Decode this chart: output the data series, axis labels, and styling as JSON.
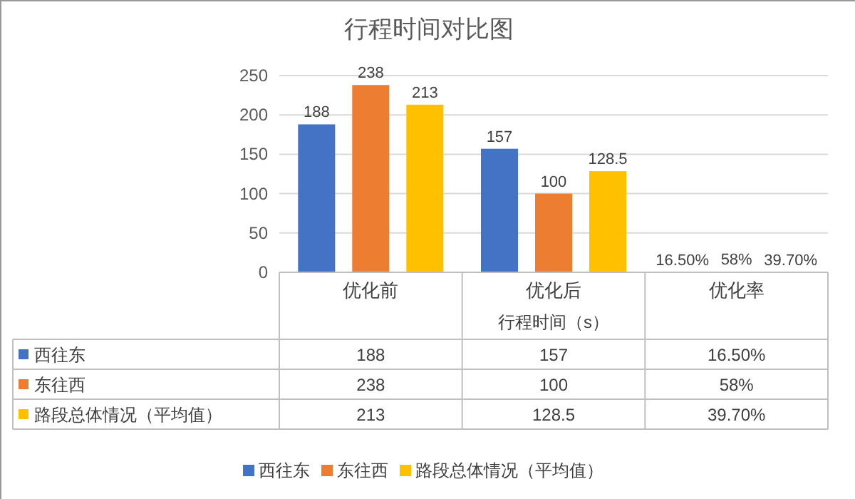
{
  "chart_data": {
    "type": "bar",
    "title": "行程时间对比图",
    "xlabel": "行程时间（s）",
    "categories": [
      "优化前",
      "优化后",
      "优化率"
    ],
    "series": [
      {
        "name": "西往东",
        "color": "#4472c4",
        "values": [
          188,
          157,
          0.165
        ],
        "value_labels": [
          "188",
          "157",
          "16.50%"
        ]
      },
      {
        "name": "东往西",
        "color": "#ed7d31",
        "values": [
          238,
          100,
          0.58
        ],
        "value_labels": [
          "238",
          "100",
          "58%"
        ]
      },
      {
        "name": "路段总体情况（平均值）",
        "color": "#ffc000",
        "values": [
          213,
          128.5,
          0.397
        ],
        "value_labels": [
          "213",
          "128.5",
          "39.70%"
        ]
      }
    ],
    "ylim": [
      0,
      250
    ],
    "yticks": [
      0,
      50,
      100,
      150,
      200,
      250
    ],
    "grid": "y",
    "legend": "bottom"
  }
}
